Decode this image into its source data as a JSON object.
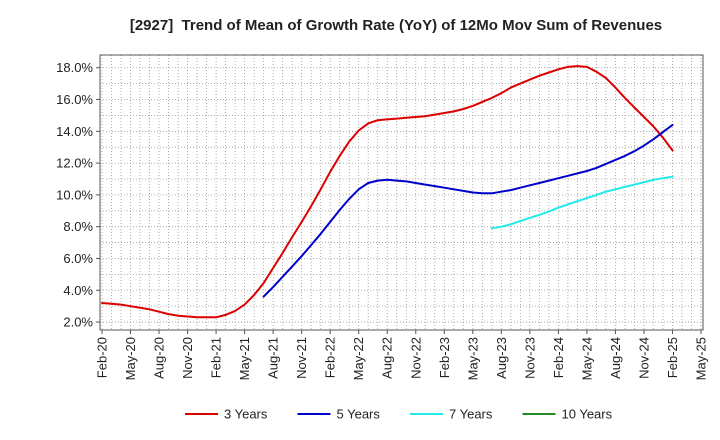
{
  "chart_data": {
    "type": "line",
    "title": "[2927]  Trend of Mean of Growth Rate (YoY) of 12Mo Mov Sum of Revenues",
    "xlabel": "",
    "ylabel": "",
    "xlim": [
      "Feb-20",
      "May-25"
    ],
    "x_start": "Feb-20",
    "xticks": [
      "Feb-20",
      "May-20",
      "Aug-20",
      "Nov-20",
      "Feb-21",
      "May-21",
      "Aug-21",
      "Nov-21",
      "Feb-22",
      "May-22",
      "Aug-22",
      "Nov-22",
      "Feb-23",
      "May-23",
      "Aug-23",
      "Nov-23",
      "Feb-24",
      "May-24",
      "Aug-24",
      "Nov-24",
      "Feb-25",
      "May-25"
    ],
    "ylim": [
      1.5,
      18.8
    ],
    "yticks": [
      2,
      4,
      6,
      8,
      10,
      12,
      14,
      16,
      18
    ],
    "ytick_labels": [
      "2.0%",
      "4.0%",
      "6.0%",
      "8.0%",
      "10.0%",
      "12.0%",
      "14.0%",
      "16.0%",
      "18.0%"
    ],
    "grid": true,
    "series": [
      {
        "name": "3 Years",
        "color": "#dd0000",
        "values": [
          3.2,
          3.15,
          3.1,
          3.0,
          2.9,
          2.8,
          2.65,
          2.5,
          2.4,
          2.35,
          2.3,
          2.3,
          2.3,
          2.45,
          2.7,
          3.1,
          3.7,
          4.45,
          5.4,
          6.35,
          7.35,
          8.3,
          9.3,
          10.35,
          11.45,
          12.45,
          13.35,
          14.05,
          14.5,
          14.7,
          14.75,
          14.8,
          14.85,
          14.9,
          14.95,
          15.05,
          15.15,
          15.25,
          15.4,
          15.6,
          15.85,
          16.1,
          16.4,
          16.75,
          17.0,
          17.25,
          17.5,
          17.7,
          17.9,
          18.05,
          18.1,
          18.05,
          17.75,
          17.35,
          16.75,
          16.1,
          15.5,
          14.9,
          14.3,
          13.6,
          12.8
        ]
      },
      {
        "name": "5 Years",
        "color": "#0000cc",
        "values": [
          null,
          null,
          null,
          null,
          null,
          null,
          null,
          null,
          null,
          null,
          null,
          null,
          null,
          null,
          null,
          null,
          null,
          3.6,
          4.2,
          4.85,
          5.5,
          6.15,
          6.85,
          7.55,
          8.3,
          9.05,
          9.75,
          10.35,
          10.75,
          10.9,
          10.95,
          10.9,
          10.85,
          10.75,
          10.65,
          10.55,
          10.45,
          10.35,
          10.25,
          10.15,
          10.1,
          10.1,
          10.2,
          10.3,
          10.45,
          10.6,
          10.75,
          10.9,
          11.05,
          11.2,
          11.35,
          11.5,
          11.7,
          11.95,
          12.2,
          12.45,
          12.75,
          13.1,
          13.5,
          13.95,
          14.4
        ]
      },
      {
        "name": "7 Years",
        "color": "#22eaea",
        "values": [
          null,
          null,
          null,
          null,
          null,
          null,
          null,
          null,
          null,
          null,
          null,
          null,
          null,
          null,
          null,
          null,
          null,
          null,
          null,
          null,
          null,
          null,
          null,
          null,
          null,
          null,
          null,
          null,
          null,
          null,
          null,
          null,
          null,
          null,
          null,
          null,
          null,
          null,
          null,
          null,
          null,
          7.9,
          8.0,
          8.15,
          8.35,
          8.55,
          8.75,
          8.95,
          9.2,
          9.4,
          9.6,
          9.8,
          10.0,
          10.2,
          10.35,
          10.5,
          10.65,
          10.8,
          10.95,
          11.05,
          11.15
        ]
      },
      {
        "name": "10 Years",
        "color": "#228b22",
        "values": []
      }
    ]
  }
}
